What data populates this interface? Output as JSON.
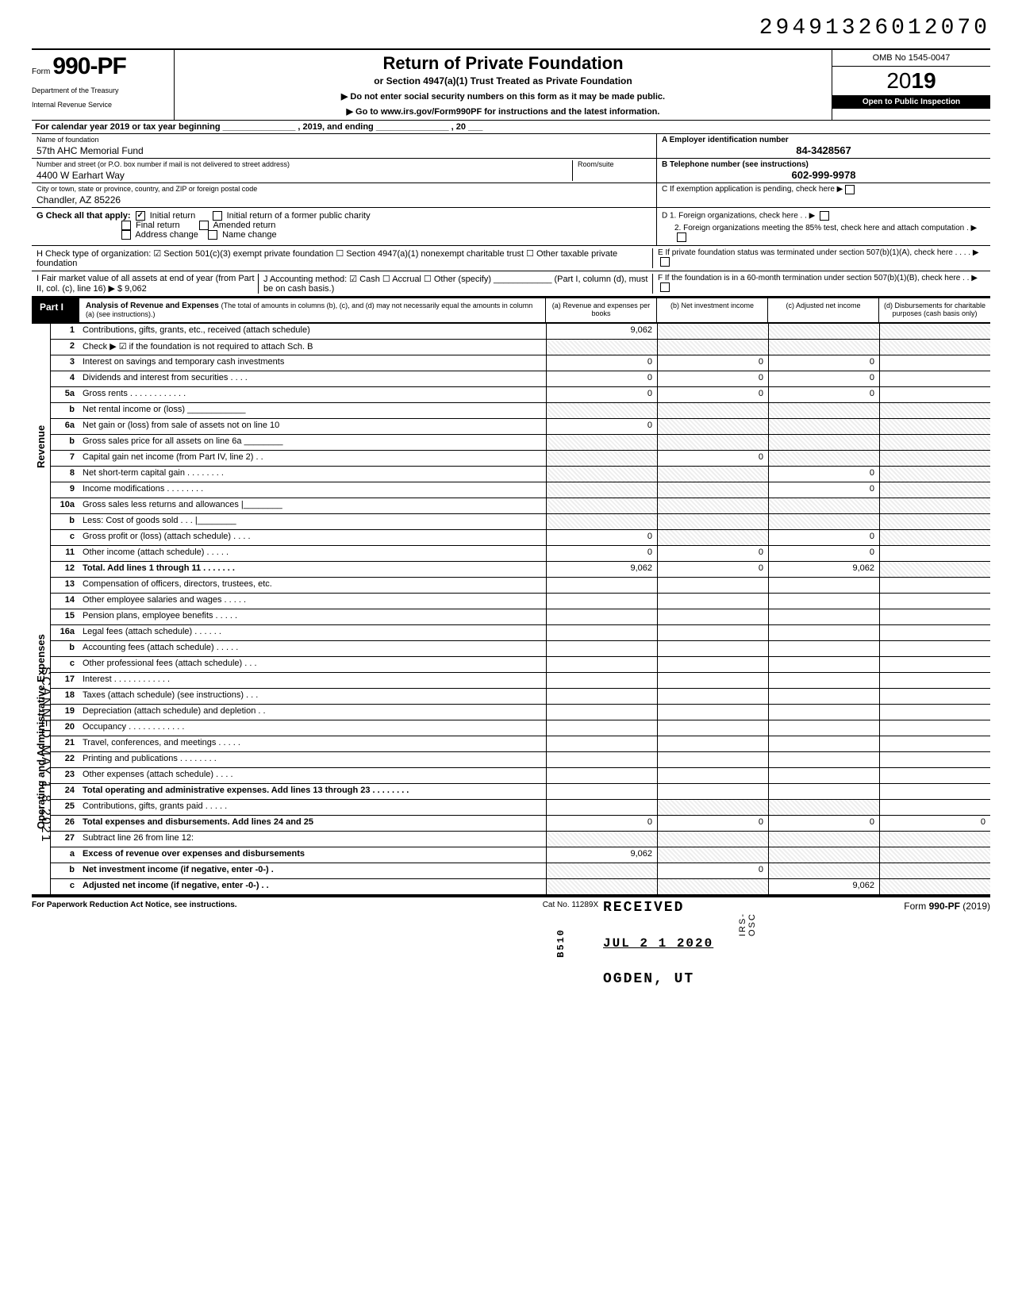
{
  "doc_number": "29491326012070",
  "form": {
    "label": "Form",
    "number": "990-PF",
    "dept1": "Department of the Treasury",
    "dept2": "Internal Revenue Service"
  },
  "header": {
    "title": "Return of Private Foundation",
    "subtitle": "or Section 4947(a)(1) Trust Treated as Private Foundation",
    "instr1": "▶ Do not enter social security numbers on this form as it may be made public.",
    "instr2": "▶ Go to www.irs.gov/Form990PF for instructions and the latest information.",
    "omb": "OMB No 1545-0047",
    "year_outline": "20",
    "year_bold": "19",
    "inspection": "Open to Public Inspection"
  },
  "calendar": "For calendar year 2019 or tax year beginning _______________ , 2019, and ending _______________ , 20 ___",
  "foundation": {
    "name_label": "Name of foundation",
    "name": "57th AHC Memorial Fund",
    "addr_label": "Number and street (or P.O. box number if mail is not delivered to street address)",
    "addr": "4400 W Earhart Way",
    "room_label": "Room/suite",
    "city_label": "City or town, state or province, country, and ZIP or foreign postal code",
    "city": "Chandler, AZ  85226"
  },
  "boxA": {
    "label": "A  Employer identification number",
    "value": "84-3428567"
  },
  "boxB": {
    "label": "B  Telephone number (see instructions)",
    "value": "602-999-9978"
  },
  "boxC": "C  If exemption application is pending, check here ▶",
  "boxD1": "D  1. Foreign organizations, check here   .   .   ▶",
  "boxD2": "2. Foreign organizations meeting the 85% test, check here and attach computation   .   ▶",
  "boxE": "E  If private foundation status was terminated under section 507(b)(1)(A), check here   .   .   .   .   ▶",
  "boxF": "F  If the foundation is in a 60-month termination under section 507(b)(1)(B), check here   .   .   ▶",
  "checkG": {
    "label": "G  Check all that apply:",
    "opts": [
      "Initial return",
      "Initial return of a former public charity",
      "Final return",
      "Amended return",
      "Address change",
      "Name change"
    ],
    "checked": [
      true,
      false,
      false,
      false,
      false,
      false
    ]
  },
  "rowH": "H  Check type of organization:    ☑ Section 501(c)(3) exempt private foundation    ☐ Section 4947(a)(1) nonexempt charitable trust   ☐ Other taxable private foundation",
  "rowI": {
    "left": "I   Fair market value of all assets at end of year (from Part II, col. (c), line 16) ▶ $                    9,062",
    "mid": "J  Accounting method: ☑ Cash  ☐ Accrual    ☐ Other (specify) ____________    (Part I, column (d), must be on cash basis.)"
  },
  "part1": {
    "label": "Part I",
    "title": "Analysis of Revenue and Expenses",
    "sub": "(The total of amounts in columns (b), (c), and (d) may not necessarily equal the amounts in column (a) (see instructions).)",
    "cols": [
      "(a) Revenue and expenses per books",
      "(b) Net investment income",
      "(c) Adjusted net income",
      "(d) Disbursements for charitable purposes (cash basis only)"
    ]
  },
  "sections": {
    "revenue": "Revenue",
    "expenses": "Operating and Administrative Expenses"
  },
  "lines": [
    {
      "n": "1",
      "d": "Contributions, gifts, grants, etc., received (attach schedule)",
      "a": "9,062",
      "b": "",
      "c": "",
      "dd": "",
      "as": false,
      "bs": true,
      "cs": true,
      "ds": true
    },
    {
      "n": "2",
      "d": "Check ▶ ☑ if the foundation is not required to attach Sch. B",
      "a": "",
      "b": "",
      "c": "",
      "dd": "",
      "as": true,
      "bs": true,
      "cs": true,
      "ds": true
    },
    {
      "n": "3",
      "d": "Interest on savings and temporary cash investments",
      "a": "0",
      "b": "0",
      "c": "0",
      "dd": ""
    },
    {
      "n": "4",
      "d": "Dividends and interest from securities   .   .   .   .",
      "a": "0",
      "b": "0",
      "c": "0",
      "dd": ""
    },
    {
      "n": "5a",
      "d": "Gross rents .   .   .   .   .   .   .   .   .   .   .   .",
      "a": "0",
      "b": "0",
      "c": "0",
      "dd": ""
    },
    {
      "n": "b",
      "d": "Net rental income or (loss) ____________",
      "a": "",
      "b": "",
      "c": "",
      "dd": "",
      "as": true,
      "bs": true,
      "cs": true,
      "ds": true
    },
    {
      "n": "6a",
      "d": "Net gain or (loss) from sale of assets not on line 10",
      "a": "0",
      "b": "",
      "c": "",
      "dd": "",
      "bs": true,
      "cs": true,
      "ds": true
    },
    {
      "n": "b",
      "d": "Gross sales price for all assets on line 6a ________",
      "a": "",
      "b": "",
      "c": "",
      "dd": "",
      "as": true,
      "bs": true,
      "cs": true,
      "ds": true
    },
    {
      "n": "7",
      "d": "Capital gain net income (from Part IV, line 2)   .   .",
      "a": "",
      "b": "0",
      "c": "",
      "dd": "",
      "as": true,
      "cs": true,
      "ds": true
    },
    {
      "n": "8",
      "d": "Net short-term capital gain .   .   .   .   .   .   .   .",
      "a": "",
      "b": "",
      "c": "0",
      "dd": "",
      "as": true,
      "bs": true,
      "ds": true
    },
    {
      "n": "9",
      "d": "Income modifications     .   .   .   .   .   .   .   .",
      "a": "",
      "b": "",
      "c": "0",
      "dd": "",
      "as": true,
      "bs": true,
      "ds": true
    },
    {
      "n": "10a",
      "d": "Gross sales less returns and allowances |________",
      "a": "",
      "b": "",
      "c": "",
      "dd": "",
      "as": true,
      "bs": true,
      "cs": true,
      "ds": true
    },
    {
      "n": "b",
      "d": "Less: Cost of goods sold    .   .   . |________",
      "a": "",
      "b": "",
      "c": "",
      "dd": "",
      "as": true,
      "bs": true,
      "cs": true,
      "ds": true
    },
    {
      "n": "c",
      "d": "Gross profit or (loss) (attach schedule)  .   .   .   .",
      "a": "0",
      "b": "",
      "c": "0",
      "dd": "",
      "bs": true,
      "ds": true
    },
    {
      "n": "11",
      "d": "Other income (attach schedule)   .   .   .   .   .",
      "a": "0",
      "b": "0",
      "c": "0",
      "dd": ""
    },
    {
      "n": "12",
      "d": "Total. Add lines 1 through 11 .   .   .   .   .   .   .",
      "bold": true,
      "a": "9,062",
      "b": "0",
      "c": "9,062",
      "dd": "",
      "ds": true
    },
    {
      "n": "13",
      "d": "Compensation of officers, directors, trustees, etc.",
      "a": "",
      "b": "",
      "c": "",
      "dd": ""
    },
    {
      "n": "14",
      "d": "Other employee salaries and wages .   .   .   .   .",
      "a": "",
      "b": "",
      "c": "",
      "dd": ""
    },
    {
      "n": "15",
      "d": "Pension plans, employee benefits    .   .   .   .   .",
      "a": "",
      "b": "",
      "c": "",
      "dd": ""
    },
    {
      "n": "16a",
      "d": "Legal fees (attach schedule)   .   .   .   .   .   .",
      "a": "",
      "b": "",
      "c": "",
      "dd": ""
    },
    {
      "n": "b",
      "d": "Accounting fees (attach schedule)   .   .   .   .   .",
      "a": "",
      "b": "",
      "c": "",
      "dd": ""
    },
    {
      "n": "c",
      "d": "Other professional fees (attach schedule)   .   .   .",
      "a": "",
      "b": "",
      "c": "",
      "dd": ""
    },
    {
      "n": "17",
      "d": "Interest   .   .   .   .   .   .   .   .   .   .   .   .",
      "a": "",
      "b": "",
      "c": "",
      "dd": ""
    },
    {
      "n": "18",
      "d": "Taxes (attach schedule) (see instructions)   .   .   .",
      "a": "",
      "b": "",
      "c": "",
      "dd": ""
    },
    {
      "n": "19",
      "d": "Depreciation (attach schedule) and depletion .   .",
      "a": "",
      "b": "",
      "c": "",
      "dd": ""
    },
    {
      "n": "20",
      "d": "Occupancy .   .   .   .   .   .   .   .   .   .   .   .",
      "a": "",
      "b": "",
      "c": "",
      "dd": ""
    },
    {
      "n": "21",
      "d": "Travel, conferences, and meetings   .   .   .   .   .",
      "a": "",
      "b": "",
      "c": "",
      "dd": ""
    },
    {
      "n": "22",
      "d": "Printing and publications   .   .   .   .   .   .   .   .",
      "a": "",
      "b": "",
      "c": "",
      "dd": ""
    },
    {
      "n": "23",
      "d": "Other expenses (attach schedule)    .   .   .   .",
      "a": "",
      "b": "",
      "c": "",
      "dd": ""
    },
    {
      "n": "24",
      "d": "Total operating and administrative expenses. Add lines 13 through 23 .   .   .   .   .   .   .   .",
      "bold": true,
      "a": "",
      "b": "",
      "c": "",
      "dd": ""
    },
    {
      "n": "25",
      "d": "Contributions, gifts, grants paid    .   .   .   .   .",
      "a": "",
      "b": "",
      "c": "",
      "dd": "",
      "bs": true,
      "cs": true
    },
    {
      "n": "26",
      "d": "Total expenses and disbursements. Add lines 24 and 25",
      "bold": true,
      "a": "0",
      "b": "0",
      "c": "0",
      "dd": "0"
    },
    {
      "n": "27",
      "d": "Subtract line 26 from line 12:",
      "a": "",
      "b": "",
      "c": "",
      "dd": "",
      "as": true,
      "bs": true,
      "cs": true,
      "ds": true
    },
    {
      "n": "a",
      "d": "Excess of revenue over expenses and disbursements",
      "bold": true,
      "a": "9,062",
      "b": "",
      "c": "",
      "dd": "",
      "bs": true,
      "cs": true,
      "ds": true
    },
    {
      "n": "b",
      "d": "Net investment income (if negative, enter -0-)   .",
      "bold": true,
      "a": "",
      "b": "0",
      "c": "",
      "dd": "",
      "as": true,
      "cs": true,
      "ds": true
    },
    {
      "n": "c",
      "d": "Adjusted net income (if negative, enter -0-)  .   .",
      "bold": true,
      "a": "",
      "b": "",
      "c": "9,062",
      "dd": "",
      "as": true,
      "bs": true,
      "ds": true
    }
  ],
  "stamps": {
    "received": "RECEIVED",
    "date": "JUL 2 1 2020",
    "ogden": "OGDEN, UT",
    "b510": "B510",
    "irsosc": "IRS-OSC"
  },
  "scanned": "SCANNED MAY 1 8 2021",
  "footer": {
    "left": "For Paperwork Reduction Act Notice, see instructions.",
    "mid": "Cat No. 11289X",
    "right_form": "Form",
    "right_num": "990-PF",
    "right_year": "(2019)"
  }
}
